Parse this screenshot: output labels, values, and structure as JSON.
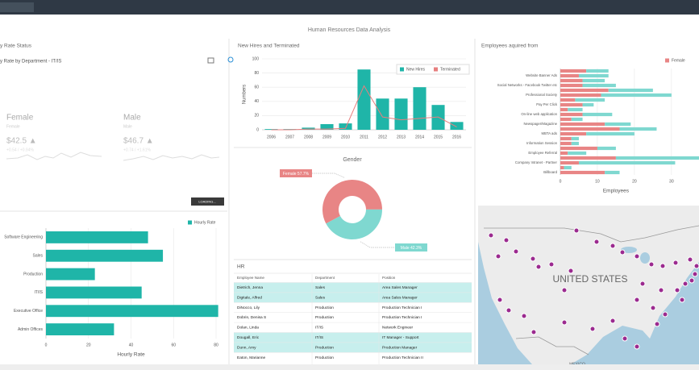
{
  "header": {
    "title": "Human Resources Data Analysis"
  },
  "hourly_status": {
    "title": "y Rate Status",
    "subtitle": "y Rate by Department - IT/IS",
    "cards": [
      {
        "label": "Female",
        "sub": "Female",
        "value": "$42.5 ▲",
        "change": "+0.54 / +0.94%"
      },
      {
        "label": "Male",
        "sub": "Male",
        "value": "$46.7 ▲",
        "change": "+0.74 / +1.61%"
      }
    ],
    "button": "LOADING..."
  },
  "chart_data": [
    {
      "type": "hbar",
      "categories": [
        "Software Engineering",
        "Sales",
        "Production",
        "IT/IS",
        "Executive Office",
        "Admin Offices"
      ],
      "series": [
        {
          "name": "Hourly Rate",
          "color": "#1fb5a8",
          "values": [
            48,
            55,
            23,
            45,
            81,
            32
          ]
        }
      ],
      "xlim": [
        0,
        80
      ],
      "xticks": [
        0,
        20,
        40,
        60,
        80
      ],
      "xlabel": "Hourly Rate",
      "grid": true,
      "legend": "top-right"
    },
    {
      "type": "bar",
      "title": "New Hires and Terminated",
      "categories": [
        "2006",
        "2007",
        "2008",
        "2009",
        "2010",
        "2011",
        "2012",
        "2013",
        "2014",
        "2015",
        "2016"
      ],
      "series": [
        {
          "name": "New Hires",
          "type": "bar",
          "color": "#1fb5a8",
          "values": [
            1,
            1,
            3,
            8,
            9,
            85,
            44,
            44,
            60,
            35,
            11
          ]
        },
        {
          "name": "Terminated",
          "type": "line",
          "color": "#e77f7f",
          "values": [
            0,
            0,
            1,
            1,
            2,
            62,
            18,
            14,
            16,
            18,
            4
          ]
        }
      ],
      "ylim": [
        0,
        100
      ],
      "yticks": [
        0,
        20,
        40,
        60,
        80,
        100
      ],
      "ylabel": "Numbers",
      "grid": true,
      "legend": "top-right"
    },
    {
      "type": "pie",
      "title": "Gender",
      "categories": [
        "Female",
        "Male"
      ],
      "values": [
        57.7,
        42.3
      ],
      "value_labels": [
        "Female 57.7%",
        "Male 42.3%"
      ],
      "colors": [
        "#e88585",
        "#7fd8d0"
      ],
      "donut": true
    },
    {
      "type": "stacked_hbar",
      "title": "Employees aquired from",
      "categories": [
        null,
        "Website Banner Ads",
        null,
        "Social Networks - Facebook Twitter etc",
        null,
        "Professional Society",
        null,
        "Pay Per Click",
        null,
        "On-line web application",
        null,
        "Newspager/Magazine",
        null,
        "MBTA ads",
        null,
        "Information Session",
        null,
        "Employee Referral",
        null,
        "Company Intranet - Partner",
        null,
        "Billboard"
      ],
      "series": [
        {
          "name": "Female",
          "color": "#e88585",
          "values": [
            7,
            5,
            6,
            6,
            13,
            11,
            4,
            6,
            2,
            6,
            3,
            12,
            16,
            7,
            3,
            3,
            10,
            2,
            15,
            5,
            1,
            12
          ]
        },
        {
          "name": "Male",
          "color": "#7fd8d0",
          "values": [
            6,
            8,
            6,
            9,
            12,
            19,
            8,
            3,
            4,
            8,
            3,
            7,
            10,
            13,
            2,
            2,
            5,
            5,
            27,
            26,
            2,
            4
          ]
        }
      ],
      "xlim": [
        0,
        37
      ],
      "xticks": [
        0,
        10,
        20,
        30
      ],
      "xlabel": "Employees",
      "grid": true,
      "legend": "top-right"
    }
  ],
  "table": {
    "title": "HR",
    "columns": [
      "Employee Name",
      "Department",
      "Position"
    ],
    "rows": [
      [
        "Dietrich, Jenna",
        "Sales",
        "Area Sales Manager"
      ],
      [
        "Digitale, Alfred",
        "Sales",
        "Area Sales Manager"
      ],
      [
        "DiNocco, Lily",
        "Production",
        "Production Technician I"
      ],
      [
        "Dobrin, Denisa S",
        "Production",
        "Production Technician I"
      ],
      [
        "Dolan, Linda",
        "IT/IS",
        "Network Engineer"
      ],
      [
        "Dougall, Eric",
        "IT/IS",
        "IT Manager - Support"
      ],
      [
        "Dunn, Amy",
        "Production",
        "Production Manager"
      ],
      [
        "Eaton, Marianne",
        "Production",
        "Production Technician II"
      ]
    ],
    "highlighted_rows": [
      0,
      1,
      5,
      6
    ]
  },
  "map": {
    "country": "UNITED STATES",
    "neighbor": "MEXICO"
  }
}
